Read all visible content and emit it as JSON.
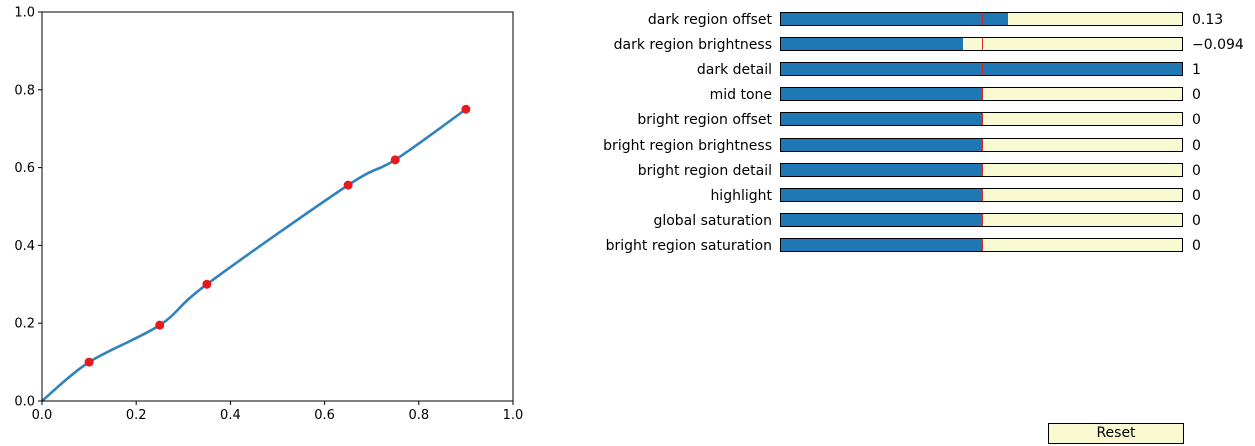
{
  "chart_data": {
    "type": "scatter",
    "title": "",
    "xlabel": "",
    "ylabel": "",
    "xlim": [
      0,
      1
    ],
    "ylim": [
      0,
      1
    ],
    "grid": false,
    "xticks": [
      "0.0",
      "0.2",
      "0.4",
      "0.6",
      "0.8",
      "1.0"
    ],
    "yticks": [
      "0.0",
      "0.2",
      "0.4",
      "0.6",
      "0.8",
      "1.0"
    ],
    "control_points": [
      {
        "x": 0.1,
        "y": 0.1
      },
      {
        "x": 0.25,
        "y": 0.195
      },
      {
        "x": 0.35,
        "y": 0.3
      },
      {
        "x": 0.65,
        "y": 0.555
      },
      {
        "x": 0.75,
        "y": 0.62
      },
      {
        "x": 0.9,
        "y": 0.75
      }
    ],
    "curve_start": {
      "x": 0.0,
      "y": 0.0
    },
    "curve_color": "#3182bd",
    "point_color": "#e41a1c"
  },
  "sliders": [
    {
      "label": "dark region offset",
      "value": 0.13,
      "value_text": "0.13",
      "min": -1,
      "max": 1
    },
    {
      "label": "dark region brightness",
      "value": -0.094,
      "value_text": "−0.094",
      "min": -1,
      "max": 1
    },
    {
      "label": "dark detail",
      "value": 1,
      "value_text": "1",
      "min": -1,
      "max": 1
    },
    {
      "label": "mid tone",
      "value": 0,
      "value_text": "0",
      "min": -1,
      "max": 1
    },
    {
      "label": "bright region offset",
      "value": 0,
      "value_text": "0",
      "min": -1,
      "max": 1
    },
    {
      "label": "bright region brightness",
      "value": 0,
      "value_text": "0",
      "min": -1,
      "max": 1
    },
    {
      "label": "bright region detail",
      "value": 0,
      "value_text": "0",
      "min": -1,
      "max": 1
    },
    {
      "label": "highlight",
      "value": 0,
      "value_text": "0",
      "min": -1,
      "max": 1
    },
    {
      "label": "global saturation",
      "value": 0,
      "value_text": "0",
      "min": -1,
      "max": 1
    },
    {
      "label": "bright region saturation",
      "value": 0,
      "value_text": "0",
      "min": -1,
      "max": 1
    }
  ],
  "slider_fill_color": "#1f77b4",
  "slider_track_color": "#fafad2",
  "slider_init_color": "#d62728",
  "reset": {
    "label": "Reset"
  }
}
